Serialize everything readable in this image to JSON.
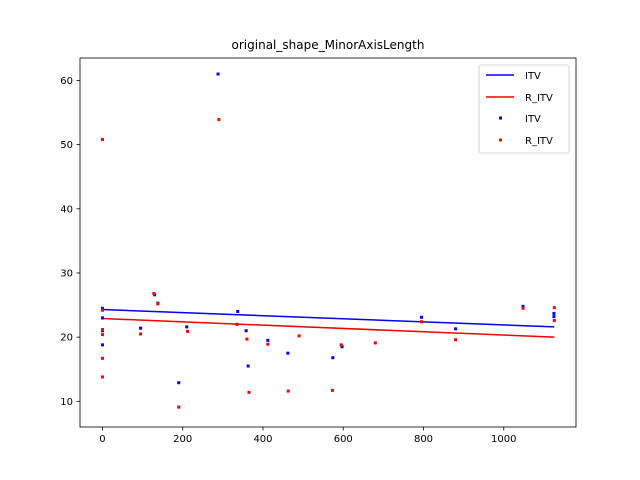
{
  "chart_data": {
    "type": "scatter",
    "title": "original_shape_MinorAxisLength",
    "xlabel": "",
    "ylabel": "",
    "xlim": [
      -56,
      1180
    ],
    "ylim": [
      6.0,
      63.5
    ],
    "xticks": [
      0,
      200,
      400,
      600,
      800,
      1000
    ],
    "xtick_labels": [
      "0",
      "200",
      "400",
      "600",
      "800",
      "1000"
    ],
    "yticks": [
      10,
      20,
      30,
      40,
      50,
      60
    ],
    "ytick_labels": [
      "10",
      "20",
      "30",
      "40",
      "50",
      "60"
    ],
    "grid": false,
    "legend_position": "top-right",
    "legend": [
      {
        "label": "ITV",
        "kind": "line",
        "color": "#0000ff"
      },
      {
        "label": "R_ITV",
        "kind": "line",
        "color": "#ff0000"
      },
      {
        "label": "ITV",
        "kind": "marker",
        "color": "#0000ff"
      },
      {
        "label": "R_ITV",
        "kind": "marker",
        "color": "#ff0000"
      }
    ],
    "series": [
      {
        "name": "ITV",
        "kind": "scatter",
        "color": "#0000ff",
        "points": [
          [
            0,
            24.5
          ],
          [
            0,
            23.0
          ],
          [
            0,
            21.0
          ],
          [
            0,
            18.8
          ],
          [
            95,
            21.4
          ],
          [
            130,
            26.6
          ],
          [
            138,
            25.3
          ],
          [
            190,
            12.9
          ],
          [
            210,
            21.6
          ],
          [
            288,
            61.0
          ],
          [
            337,
            24.0
          ],
          [
            358,
            21.0
          ],
          [
            363,
            15.5
          ],
          [
            412,
            19.5
          ],
          [
            462,
            17.5
          ],
          [
            574,
            16.8
          ],
          [
            597,
            18.5
          ],
          [
            795,
            23.1
          ],
          [
            880,
            21.3
          ],
          [
            1048,
            24.8
          ],
          [
            1125,
            23.7
          ],
          [
            1125,
            23.2
          ]
        ]
      },
      {
        "name": "R_ITV",
        "kind": "scatter",
        "color": "#ff0000",
        "points": [
          [
            0,
            50.8
          ],
          [
            0,
            24.2
          ],
          [
            0,
            21.2
          ],
          [
            0,
            20.4
          ],
          [
            0,
            16.7
          ],
          [
            0,
            13.8
          ],
          [
            95,
            20.5
          ],
          [
            128,
            26.8
          ],
          [
            138,
            25.2
          ],
          [
            190,
            9.1
          ],
          [
            212,
            20.9
          ],
          [
            290,
            53.9
          ],
          [
            335,
            22.0
          ],
          [
            360,
            19.7
          ],
          [
            365,
            11.4
          ],
          [
            412,
            18.9
          ],
          [
            463,
            11.6
          ],
          [
            490,
            20.2
          ],
          [
            573,
            11.7
          ],
          [
            595,
            18.8
          ],
          [
            680,
            19.1
          ],
          [
            795,
            22.4
          ],
          [
            880,
            19.6
          ],
          [
            1048,
            24.5
          ],
          [
            1126,
            24.6
          ],
          [
            1126,
            22.6
          ]
        ]
      },
      {
        "name": "ITV",
        "kind": "trend",
        "color": "#0000ff",
        "x": [
          0,
          1126
        ],
        "y": [
          24.3,
          21.6
        ]
      },
      {
        "name": "R_ITV",
        "kind": "trend",
        "color": "#ff0000",
        "x": [
          0,
          1126
        ],
        "y": [
          22.9,
          20.0
        ]
      }
    ]
  }
}
